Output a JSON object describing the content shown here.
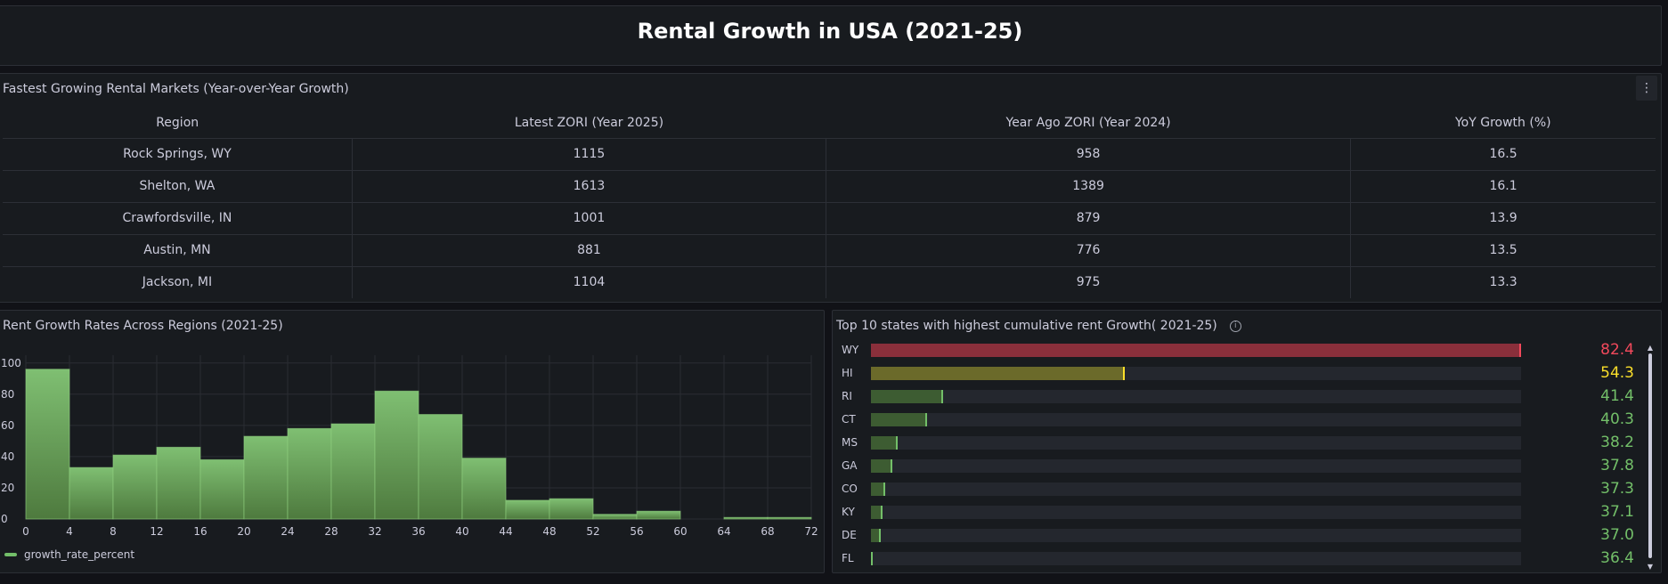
{
  "page": {
    "title": "Rental Growth in USA (2021-25)"
  },
  "table_panel": {
    "title": "Fastest Growing Rental Markets (Year-over-Year Growth)",
    "menu_icon": "kebab-menu-icon",
    "headers": [
      "Region",
      "Latest ZORI (Year 2025)",
      "Year Ago ZORI (Year 2024)",
      "YoY Growth (%)"
    ],
    "rows": [
      [
        "Rock Springs, WY",
        "1115",
        "958",
        "16.5"
      ],
      [
        "Shelton, WA",
        "1613",
        "1389",
        "16.1"
      ],
      [
        "Crawfordsville, IN",
        "1001",
        "879",
        "13.9"
      ],
      [
        "Austin, MN",
        "881",
        "776",
        "13.5"
      ],
      [
        "Jackson, MI",
        "1104",
        "975",
        "13.3"
      ]
    ]
  },
  "chart_data": [
    {
      "type": "bar",
      "title": "Rent Growth Rates Across Regions (2021-25)",
      "x_ticks": [
        "0",
        "4",
        "8",
        "12",
        "16",
        "20",
        "24",
        "28",
        "32",
        "36",
        "40",
        "44",
        "48",
        "52",
        "56",
        "60",
        "64",
        "68",
        "72"
      ],
      "y_ticks": [
        "0",
        "20",
        "40",
        "60",
        "80",
        "100"
      ],
      "bins": [
        [
          0,
          4
        ],
        [
          4,
          8
        ],
        [
          8,
          12
        ],
        [
          12,
          16
        ],
        [
          16,
          20
        ],
        [
          20,
          24
        ],
        [
          24,
          28
        ],
        [
          28,
          32
        ],
        [
          32,
          36
        ],
        [
          36,
          40
        ],
        [
          40,
          44
        ],
        [
          44,
          48
        ],
        [
          48,
          52
        ],
        [
          52,
          56
        ],
        [
          56,
          60
        ],
        [
          60,
          64
        ],
        [
          64,
          68
        ],
        [
          68,
          72
        ]
      ],
      "values": [
        96,
        33,
        41,
        46,
        38,
        53,
        58,
        61,
        82,
        67,
        39,
        12,
        13,
        3,
        5,
        0,
        1,
        1
      ],
      "xlim": [
        0,
        72
      ],
      "ylim": [
        0,
        105
      ],
      "grid": true,
      "legend": "bottom-left",
      "series": [
        {
          "name": "growth_rate_percent",
          "color": "#73bf69"
        }
      ]
    },
    {
      "type": "bar",
      "orientation": "horizontal",
      "title": "Top 10 states with highest cumulative rent Growth( 2021-25)",
      "info_icon": "info-icon",
      "categories": [
        "WY",
        "HI",
        "RI",
        "CT",
        "MS",
        "GA",
        "CO",
        "KY",
        "DE",
        "FL"
      ],
      "values": [
        82.4,
        54.3,
        41.4,
        40.3,
        38.2,
        37.8,
        37.3,
        37.1,
        37.0,
        36.4
      ],
      "labels": [
        "82.4",
        "54.3",
        "41.4",
        "40.3",
        "38.2",
        "37.8",
        "37.3",
        "37.1",
        "37.0",
        "36.4"
      ],
      "xlim": [
        36.3,
        82.4
      ],
      "colors": {
        "high": "#f2495c",
        "mid": "#fade2a",
        "low": "#73bf69"
      }
    }
  ]
}
